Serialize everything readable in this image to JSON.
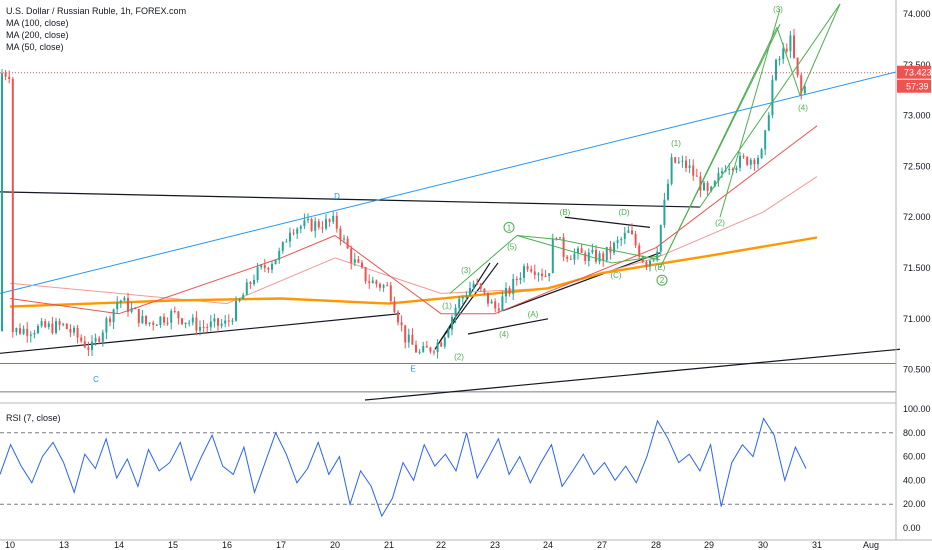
{
  "header": {
    "title": "U.S. Dollar / Russian Ruble, 1h, FOREX.com",
    "indicators": [
      "MA (100, close)",
      "MA (200, close)",
      "MA (50, close)"
    ]
  },
  "rsi_title": "RSI (7, close)",
  "price_badges": {
    "last_price": "73.423",
    "countdown": "57:39"
  },
  "colors": {
    "candle_up": "#26a69a",
    "candle_down": "#ef5350",
    "ma50": "#ef5350",
    "ma100": "#f19a9a",
    "ma200": "#ff9800",
    "rsi": "#2962ff",
    "channel": "#2196f3",
    "wave": "#4caf50",
    "trend": "#131722",
    "wave_label_blue": "#2196f3"
  },
  "wave_labels": [
    "D",
    "C",
    "E",
    "(1)",
    "(2)",
    "(3)",
    "(4)",
    "(5)",
    "(A)",
    "(B)",
    "(C)",
    "(D)",
    "(E)",
    "1",
    "2"
  ],
  "chart_data": [
    {
      "type": "candlestick",
      "title": "U.S. Dollar / Russian Ruble, 1h, FOREX.com",
      "x_ticks": [
        "10",
        "13",
        "14",
        "15",
        "16",
        "17",
        "20",
        "21",
        "22",
        "23",
        "24",
        "27",
        "28",
        "29",
        "30",
        "31",
        "Aug"
      ],
      "y_ticks": [
        "74.000",
        "73.500",
        "73.000",
        "72.500",
        "72.000",
        "71.500",
        "71.000",
        "70.500"
      ],
      "ylim": [
        70.22,
        74.08
      ],
      "grid": false,
      "last_price": 73.423,
      "close_path": [
        {
          "x": "10",
          "y": 70.88
        },
        {
          "x": "13",
          "y": 70.93
        },
        {
          "x": "13.5",
          "y": 70.7
        },
        {
          "x": "14",
          "y": 71.2
        },
        {
          "x": "14.5",
          "y": 70.95
        },
        {
          "x": "15",
          "y": 71.05
        },
        {
          "x": "15.5",
          "y": 70.92
        },
        {
          "x": "16",
          "y": 70.95
        },
        {
          "x": "16.5",
          "y": 71.42
        },
        {
          "x": "17",
          "y": 71.65
        },
        {
          "x": "17.5",
          "y": 71.9
        },
        {
          "x": "20",
          "y": 71.95
        },
        {
          "x": "20.3",
          "y": 71.6
        },
        {
          "x": "20.6",
          "y": 71.38
        },
        {
          "x": "21",
          "y": 71.3
        },
        {
          "x": "21.3",
          "y": 70.82
        },
        {
          "x": "21.6",
          "y": 70.65
        },
        {
          "x": "22",
          "y": 70.78
        },
        {
          "x": "22.3",
          "y": 71.15
        },
        {
          "x": "22.6",
          "y": 71.35
        },
        {
          "x": "23",
          "y": 71.1
        },
        {
          "x": "23.3",
          "y": 71.3
        },
        {
          "x": "23.6",
          "y": 71.55
        },
        {
          "x": "24",
          "y": 71.42
        },
        {
          "x": "24.4",
          "y": 71.9
        },
        {
          "x": "24.8",
          "y": 71.65
        },
        {
          "x": "27",
          "y": 71.6
        },
        {
          "x": "27.5",
          "y": 71.85
        },
        {
          "x": "27.8",
          "y": 71.55
        },
        {
          "x": "28",
          "y": 71.65
        },
        {
          "x": "28.3",
          "y": 72.55
        },
        {
          "x": "28.6",
          "y": 72.5
        },
        {
          "x": "29",
          "y": 72.2
        },
        {
          "x": "29.3",
          "y": 72.52
        },
        {
          "x": "29.6",
          "y": 72.55
        },
        {
          "x": "30",
          "y": 72.62
        },
        {
          "x": "30.2",
          "y": 73.45
        },
        {
          "x": "30.5",
          "y": 73.75
        },
        {
          "x": "30.7",
          "y": 73.2
        },
        {
          "x": "30.9",
          "y": 73.42
        }
      ],
      "series": [
        {
          "name": "MA (100, close)",
          "points": [
            {
              "x": "10",
              "y": 71.35
            },
            {
              "x": "16",
              "y": 71.15
            },
            {
              "x": "20",
              "y": 71.6
            },
            {
              "x": "22",
              "y": 71.25
            },
            {
              "x": "24",
              "y": 71.3
            },
            {
              "x": "28",
              "y": 71.6
            },
            {
              "x": "30",
              "y": 72.05
            },
            {
              "x": "31",
              "y": 72.4
            }
          ]
        },
        {
          "name": "MA (200, close)",
          "points": [
            {
              "x": "10",
              "y": 71.12
            },
            {
              "x": "15",
              "y": 71.18
            },
            {
              "x": "17",
              "y": 71.2
            },
            {
              "x": "21",
              "y": 71.15
            },
            {
              "x": "24",
              "y": 71.3
            },
            {
              "x": "27",
              "y": 71.45
            },
            {
              "x": "29",
              "y": 71.62
            },
            {
              "x": "31",
              "y": 71.8
            }
          ]
        },
        {
          "name": "MA (50, close)",
          "points": [
            {
              "x": "10",
              "y": 71.2
            },
            {
              "x": "14",
              "y": 71.05
            },
            {
              "x": "17",
              "y": 71.6
            },
            {
              "x": "20",
              "y": 71.82
            },
            {
              "x": "22",
              "y": 71.05
            },
            {
              "x": "23",
              "y": 71.05
            },
            {
              "x": "28",
              "y": 71.7
            },
            {
              "x": "30",
              "y": 72.5
            },
            {
              "x": "31",
              "y": 72.9
            }
          ]
        }
      ]
    },
    {
      "type": "line",
      "title": "RSI (7, close)",
      "y_ticks": [
        "100.00",
        "80.00",
        "60.00",
        "40.00",
        "20.00",
        "0.00"
      ],
      "ylim": [
        0,
        100
      ],
      "reference_lines": [
        80,
        20
      ],
      "series": [
        {
          "name": "RSI (7, close)",
          "values": [
            45,
            70,
            52,
            38,
            60,
            72,
            55,
            30,
            62,
            50,
            75,
            42,
            58,
            35,
            66,
            48,
            55,
            72,
            40,
            60,
            78,
            52,
            45,
            68,
            30,
            55,
            80,
            62,
            38,
            50,
            72,
            45,
            60,
            20,
            48,
            35,
            10,
            25,
            55,
            40,
            70,
            52,
            62,
            48,
            80,
            42,
            58,
            75,
            45,
            60,
            38,
            55,
            70,
            35,
            48,
            62,
            45,
            55,
            40,
            52,
            38,
            60,
            90,
            75,
            55,
            62,
            48,
            70,
            18,
            55,
            70,
            60,
            92,
            78,
            40,
            68,
            50
          ]
        }
      ]
    }
  ]
}
